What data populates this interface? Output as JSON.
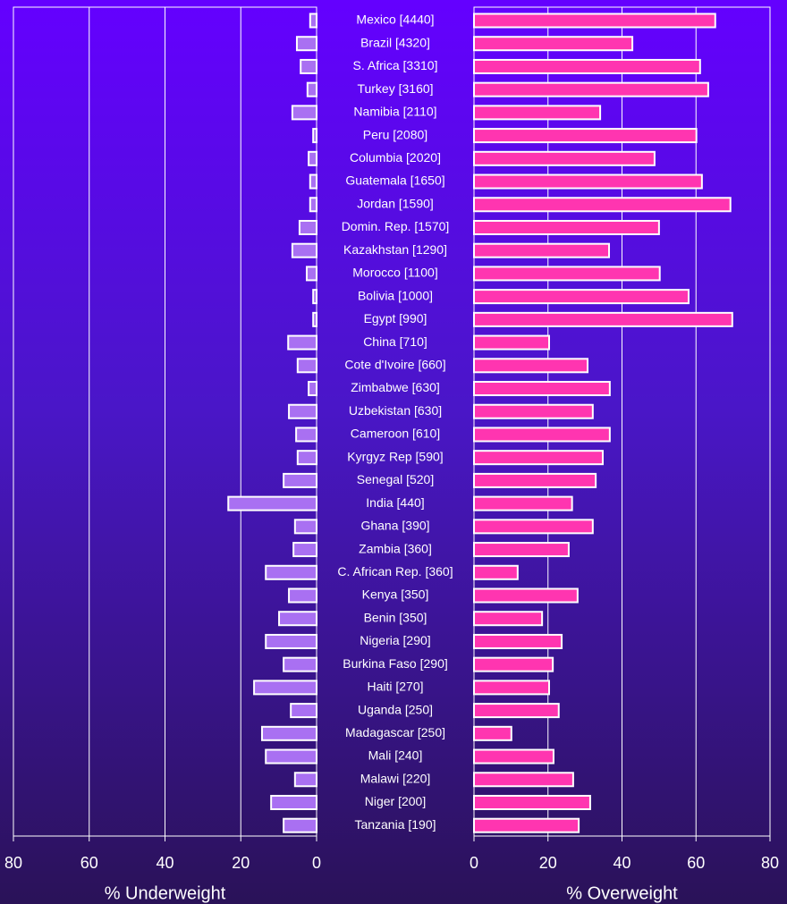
{
  "chart_data": [
    {
      "type": "bar",
      "orientation": "horizontal",
      "xlabel": "% Underweight",
      "color": "#a970f2",
      "categories": [
        "Mexico [4440]",
        "Brazil [4320]",
        "S. Africa [3310]",
        "Turkey [3160]",
        "Namibia [2110]",
        "Peru [2080]",
        "Columbia [2020]",
        "Guatemala [1650]",
        "Jordan [1590]",
        "Domin. Rep. [1570]",
        "Kazakhstan [1290]",
        "Morocco [1100]",
        "Bolivia [1000]",
        "Egypt [990]",
        "China [710]",
        "Cote d'Ivoire [660]",
        "Zimbabwe [630]",
        "Uzbekistan [630]",
        "Cameroon [610]",
        "Kyrgyz Rep [590]",
        "Senegal [520]",
        "India [440]",
        "Ghana [390]",
        "Zambia [360]",
        "C. African Rep. [360]",
        "Kenya [350]",
        "Benin [350]",
        "Nigeria [290]",
        "Burkina Faso [290]",
        "Haiti [270]",
        "Uganda [250]",
        "Madagascar [250]",
        "Mali [240]",
        "Malawi [220]",
        "Niger [200]",
        "Tanzania [190]"
      ],
      "values": [
        1.7,
        5.2,
        4.2,
        2.4,
        6.4,
        0.9,
        2.1,
        1.7,
        1.7,
        4.5,
        6.4,
        2.6,
        0.9,
        0.9,
        7.5,
        5.0,
        2.1,
        7.3,
        5.4,
        5.0,
        8.7,
        23.3,
        5.7,
        6.1,
        13.4,
        7.3,
        9.9,
        13.4,
        8.7,
        16.5,
        6.8,
        14.4,
        13.4,
        5.7,
        12.0,
        8.7
      ],
      "xlim": [
        80,
        0
      ],
      "xticks": [
        80,
        60,
        40,
        20,
        0
      ],
      "grid": true
    },
    {
      "type": "bar",
      "orientation": "horizontal",
      "xlabel": "%  Overweight",
      "color": "#ff35b0",
      "values": [
        65.2,
        42.8,
        61.1,
        63.3,
        34.1,
        60.1,
        48.8,
        61.6,
        69.3,
        50.0,
        36.5,
        50.2,
        58.0,
        69.8,
        20.3,
        30.7,
        36.7,
        32.1,
        36.7,
        34.8,
        32.9,
        26.5,
        32.1,
        25.6,
        11.8,
        28.0,
        18.4,
        23.7,
        21.3,
        20.3,
        22.9,
        10.1,
        21.5,
        26.8,
        31.4,
        28.3
      ],
      "xlim": [
        0,
        80
      ],
      "xticks": [
        0,
        20,
        40,
        60,
        80
      ],
      "grid": true
    }
  ]
}
